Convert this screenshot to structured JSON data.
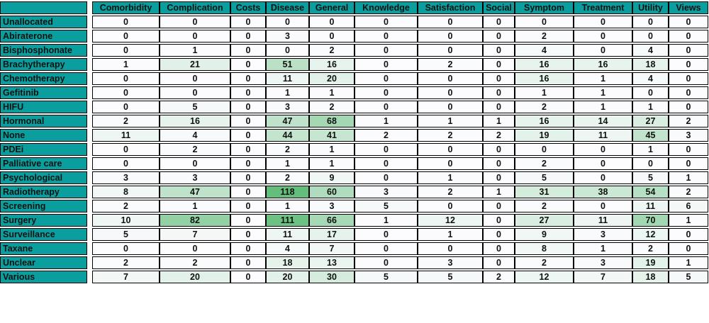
{
  "colors": {
    "header_teal": "#0b9e9e",
    "cell_border": "#000000",
    "text": "#111111"
  },
  "chart_data": {
    "type": "heatmap",
    "columns": [
      "Comorbidity",
      "Complication",
      "Costs",
      "Disease",
      "General",
      "Knowledge",
      "Satisfaction",
      "Social",
      "Symptom",
      "Treatment",
      "Utility",
      "Views"
    ],
    "row_labels": [
      "Unallocated",
      "Abiraterone",
      "Bisphosphonate",
      "Brachytherapy",
      "Chemotherapy",
      "Gefitinib",
      "HIFU",
      "Hormonal",
      "None",
      "PDEi",
      "Palliative care",
      "Psychological",
      "Radiotherapy",
      "Screening",
      "Surgery",
      "Surveillance",
      "Taxane",
      "Unclear",
      "Various"
    ],
    "values": [
      [
        0,
        0,
        0,
        0,
        0,
        0,
        0,
        0,
        0,
        0,
        0,
        0
      ],
      [
        0,
        0,
        0,
        3,
        0,
        0,
        0,
        0,
        2,
        0,
        0,
        0
      ],
      [
        0,
        1,
        0,
        0,
        2,
        0,
        0,
        0,
        4,
        0,
        4,
        0
      ],
      [
        1,
        21,
        0,
        51,
        16,
        0,
        2,
        0,
        16,
        16,
        18,
        0
      ],
      [
        0,
        0,
        0,
        11,
        20,
        0,
        0,
        0,
        16,
        1,
        4,
        0
      ],
      [
        0,
        0,
        0,
        1,
        1,
        0,
        0,
        0,
        1,
        1,
        0,
        0
      ],
      [
        0,
        5,
        0,
        3,
        2,
        0,
        0,
        0,
        2,
        1,
        1,
        0
      ],
      [
        2,
        16,
        0,
        47,
        68,
        1,
        1,
        1,
        16,
        14,
        27,
        2
      ],
      [
        11,
        4,
        0,
        44,
        41,
        2,
        2,
        2,
        19,
        11,
        45,
        3
      ],
      [
        0,
        2,
        0,
        2,
        1,
        0,
        0,
        0,
        0,
        0,
        1,
        0
      ],
      [
        0,
        0,
        0,
        1,
        1,
        0,
        0,
        0,
        2,
        0,
        0,
        0
      ],
      [
        3,
        3,
        0,
        2,
        9,
        0,
        1,
        0,
        5,
        0,
        5,
        1
      ],
      [
        8,
        47,
        0,
        118,
        60,
        3,
        2,
        1,
        31,
        38,
        54,
        2
      ],
      [
        2,
        1,
        0,
        1,
        3,
        5,
        0,
        0,
        2,
        0,
        11,
        6
      ],
      [
        10,
        82,
        0,
        111,
        66,
        1,
        12,
        0,
        27,
        11,
        70,
        1
      ],
      [
        5,
        7,
        0,
        11,
        17,
        0,
        1,
        0,
        9,
        3,
        12,
        0
      ],
      [
        0,
        0,
        0,
        4,
        7,
        0,
        0,
        0,
        8,
        1,
        2,
        0
      ],
      [
        2,
        2,
        0,
        18,
        13,
        0,
        3,
        0,
        2,
        3,
        19,
        1
      ],
      [
        7,
        20,
        0,
        20,
        30,
        5,
        5,
        2,
        12,
        7,
        18,
        5
      ]
    ],
    "color_scale": {
      "min_value": 0,
      "max_value": 118,
      "min_color": "#FCFCFF",
      "max_color": "#63BE7B"
    },
    "legend_position": "none",
    "grid": true
  }
}
